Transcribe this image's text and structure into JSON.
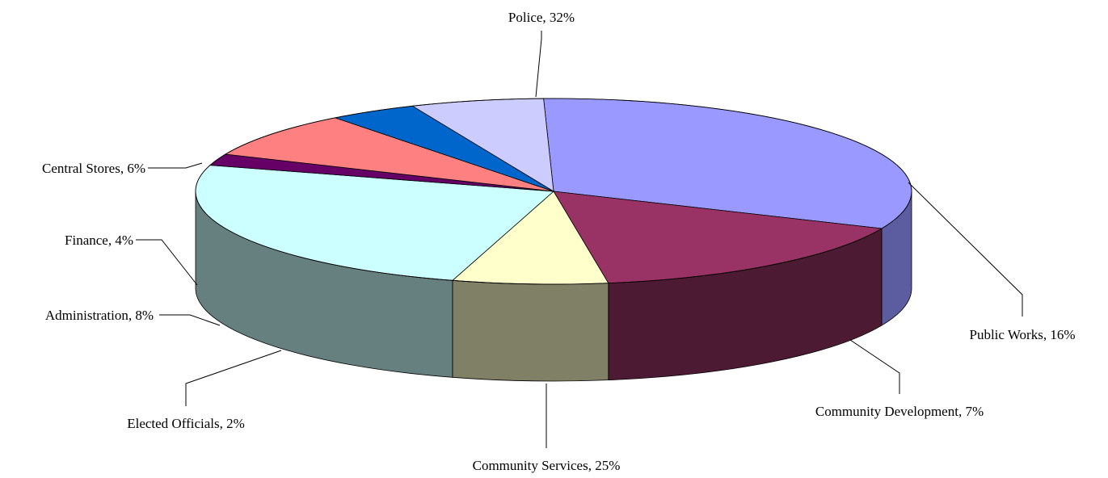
{
  "chart_data": {
    "type": "pie",
    "style": "3d-exploded-none",
    "title": "",
    "slices": [
      {
        "name": "Police",
        "value": 32,
        "label": "Police, 32%",
        "color": "#9999FF",
        "side_color": "#5C5CA0"
      },
      {
        "name": "Public Works",
        "value": 16,
        "label": "Public Works, 16%",
        "color": "#993366",
        "side_color": "#4D1A33"
      },
      {
        "name": "Community Development",
        "value": 7,
        "label": "Community Development, 7%",
        "color": "#FFFFCC",
        "side_color": "#808066"
      },
      {
        "name": "Community Services",
        "value": 25,
        "label": "Community Services, 25%",
        "color": "#CCFFFF",
        "side_color": "#668080"
      },
      {
        "name": "Elected Officials",
        "value": 2,
        "label": "Elected Officials, 2%",
        "color": "#660066",
        "side_color": "#330033"
      },
      {
        "name": "Administration",
        "value": 8,
        "label": "Administration, 8%",
        "color": "#FF8080",
        "side_color": "#804040"
      },
      {
        "name": "Finance",
        "value": 4,
        "label": "Finance, 4%",
        "color": "#0066CC",
        "side_color": "#003366"
      },
      {
        "name": "Central Stores",
        "value": 6,
        "label": "Central Stores, 6%",
        "color": "#CCCCFF",
        "side_color": "#666680"
      }
    ],
    "legend": "none",
    "data_labels": "outside-with-leader-lines"
  }
}
